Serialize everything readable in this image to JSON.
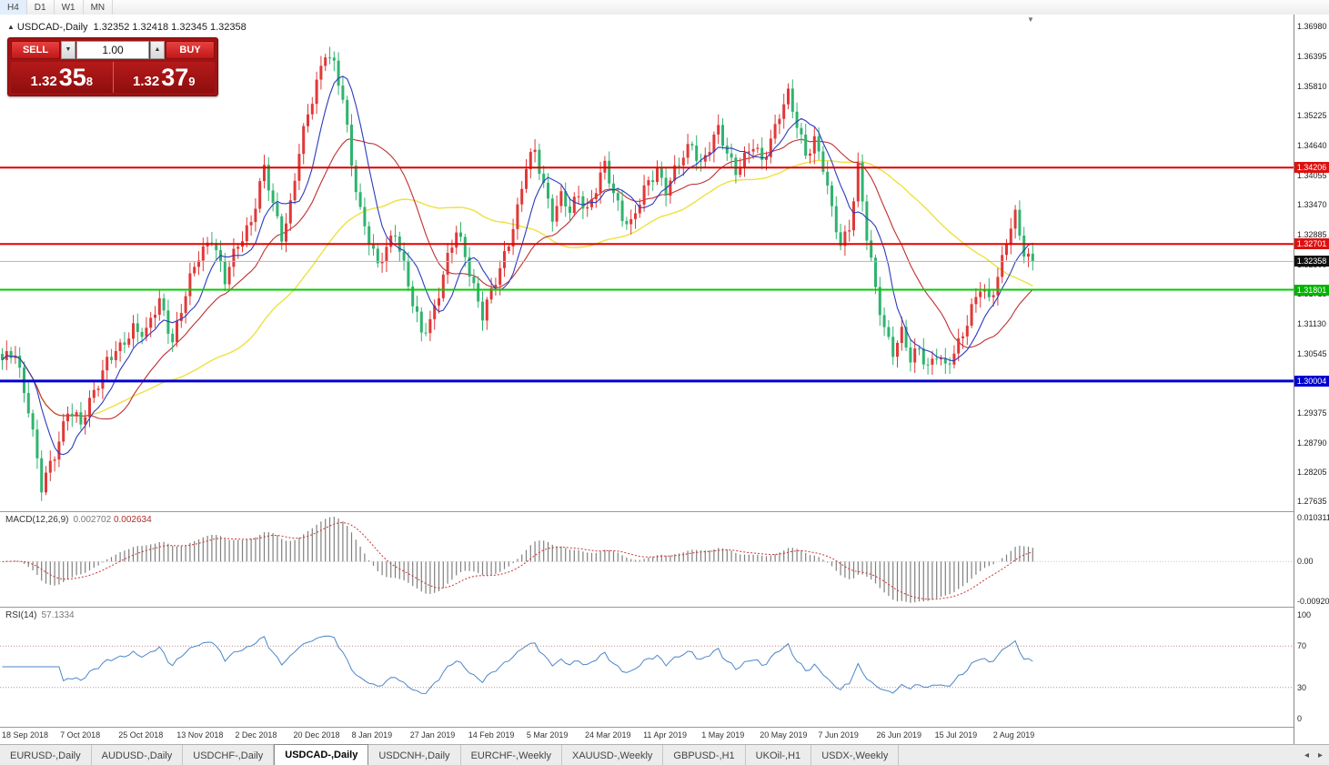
{
  "toolbar": {
    "timeframes": [
      "H4",
      "D1",
      "W1",
      "MN"
    ]
  },
  "chart_header": {
    "marker": "▲",
    "title": "USDCAD-,Daily",
    "ohlc": "1.32352 1.32418 1.32345 1.32358"
  },
  "trade_panel": {
    "sell_label": "SELL",
    "buy_label": "BUY",
    "volume": "1.00",
    "sell_price": {
      "big": "1.32",
      "mid": "35",
      "sup": "8"
    },
    "buy_price": {
      "big": "1.32",
      "mid": "37",
      "sup": "9"
    }
  },
  "price_axis": {
    "labels": [
      "1.36980",
      "1.36395",
      "1.35810",
      "1.35225",
      "1.34640",
      "1.34055",
      "1.33470",
      "1.32885",
      "1.32300",
      "1.31715",
      "1.31130",
      "1.30545",
      "1.29960",
      "1.29375",
      "1.28790",
      "1.28205",
      "1.27635"
    ],
    "tags": [
      {
        "label": "1.34206",
        "price": 1.34206,
        "bg": "#dd1111"
      },
      {
        "label": "1.32701",
        "price": 1.32701,
        "bg": "#dd1111"
      },
      {
        "label": "1.32358",
        "price": 1.32358,
        "bg": "#101010"
      },
      {
        "label": "1.31801",
        "price": 1.31801,
        "bg": "#00b400"
      },
      {
        "label": "1.30004",
        "price": 1.30004,
        "bg": "#0000d0"
      }
    ]
  },
  "current_price": {
    "value": 1.32358,
    "label": "1.32358"
  },
  "macd_panel": {
    "label": "MACD(12,26,9)",
    "value_main": "0.002702",
    "value_signal": "0.002634",
    "axis_labels": [
      "0.010311",
      "0.00",
      "-0.00920"
    ],
    "axis_values": [
      0.010311,
      0,
      -0.0092
    ]
  },
  "rsi_panel": {
    "label": "RSI(14)",
    "value": "57.1334",
    "axis_labels": [
      "100",
      "70",
      "30",
      "0"
    ],
    "axis_values": [
      100,
      70,
      30,
      0
    ],
    "levels": [
      70,
      30
    ]
  },
  "date_axis": {
    "labels": [
      "18 Sep 2018",
      "7 Oct 2018",
      "25 Oct 2018",
      "13 Nov 2018",
      "2 Dec 2018",
      "20 Dec 2018",
      "8 Jan 2019",
      "27 Jan 2019",
      "14 Feb 2019",
      "5 Mar 2019",
      "24 Mar 2019",
      "11 Apr 2019",
      "1 May 2019",
      "20 May 2019",
      "7 Jun 2019",
      "26 Jun 2019",
      "15 Jul 2019",
      "2 Aug 2019"
    ]
  },
  "tabs": {
    "items": [
      "EURUSD-,Daily",
      "AUDUSD-,Daily",
      "USDCHF-,Daily",
      "USDCAD-,Daily",
      "USDCNH-,Daily",
      "EURCHF-,Weekly",
      "XAUUSD-,Weekly",
      "GBPUSD-,H1",
      "UKOil-,H1",
      "USDX-,Weekly"
    ],
    "active_index": 3
  },
  "chart_data": {
    "type": "candlestick",
    "symbol": "USDCAD-",
    "timeframe": "Daily",
    "bars_total": 237,
    "bar_spacing": 4.8,
    "price_range": [
      1.2744,
      1.3722
    ],
    "up_color": "#e03838",
    "down_color": "#2fb36e",
    "ma": [
      {
        "period": 8,
        "color": "#2b3bbd",
        "width": 1.1
      },
      {
        "period": 21,
        "color": "#c03030",
        "width": 1.1
      },
      {
        "period": 50,
        "color": "#efe040",
        "width": 1.4
      }
    ],
    "hlines": [
      {
        "price": 1.34206,
        "color": "#e00000",
        "w": 2
      },
      {
        "price": 1.32701,
        "color": "#e00000",
        "w": 2
      },
      {
        "price": 1.31801,
        "color": "#00cc00",
        "w": 2
      },
      {
        "price": 1.30004,
        "color": "#0000d0",
        "w": 3
      }
    ],
    "macd": {
      "fast": 12,
      "slow": 26,
      "signal": 9,
      "hist_color": "#7f7f7f",
      "signal_color": "#cc3333",
      "range": [
        -0.0105,
        0.0115
      ]
    },
    "rsi": {
      "period": 14,
      "color": "#4a86c8"
    },
    "anchors": [
      [
        0,
        1.3035
      ],
      [
        3,
        1.3058
      ],
      [
        6,
        1.295
      ],
      [
        9,
        1.2785
      ],
      [
        12,
        1.286
      ],
      [
        15,
        1.2945
      ],
      [
        18,
        1.291
      ],
      [
        21,
        1.2985
      ],
      [
        24,
        1.304
      ],
      [
        27,
        1.306
      ],
      [
        30,
        1.311
      ],
      [
        33,
        1.3095
      ],
      [
        36,
        1.3155
      ],
      [
        39,
        1.3085
      ],
      [
        42,
        1.317
      ],
      [
        45,
        1.3245
      ],
      [
        48,
        1.329
      ],
      [
        51,
        1.3195
      ],
      [
        54,
        1.327
      ],
      [
        57,
        1.332
      ],
      [
        60,
        1.3415
      ],
      [
        62,
        1.3345
      ],
      [
        64,
        1.329
      ],
      [
        66,
        1.335
      ],
      [
        68,
        1.345
      ],
      [
        70,
        1.352
      ],
      [
        72,
        1.359
      ],
      [
        74,
        1.3655
      ],
      [
        76,
        1.362
      ],
      [
        78,
        1.355
      ],
      [
        80,
        1.343
      ],
      [
        82,
        1.334
      ],
      [
        84,
        1.328
      ],
      [
        86,
        1.322
      ],
      [
        88,
        1.326
      ],
      [
        90,
        1.33
      ],
      [
        92,
        1.323
      ],
      [
        94,
        1.315
      ],
      [
        96,
        1.309
      ],
      [
        98,
        1.312
      ],
      [
        100,
        1.318
      ],
      [
        102,
        1.324
      ],
      [
        104,
        1.329
      ],
      [
        106,
        1.325
      ],
      [
        108,
        1.319
      ],
      [
        110,
        1.313
      ],
      [
        112,
        1.317
      ],
      [
        114,
        1.322
      ],
      [
        116,
        1.328
      ],
      [
        118,
        1.334
      ],
      [
        120,
        1.342
      ],
      [
        122,
        1.345
      ],
      [
        124,
        1.339
      ],
      [
        126,
        1.333
      ],
      [
        128,
        1.336
      ],
      [
        130,
        1.333
      ],
      [
        132,
        1.337
      ],
      [
        134,
        1.334
      ],
      [
        136,
        1.338
      ],
      [
        138,
        1.342
      ],
      [
        140,
        1.337
      ],
      [
        142,
        1.333
      ],
      [
        144,
        1.331
      ],
      [
        146,
        1.335
      ],
      [
        148,
        1.339
      ],
      [
        150,
        1.342
      ],
      [
        152,
        1.338
      ],
      [
        154,
        1.341
      ],
      [
        156,
        1.344
      ],
      [
        158,
        1.347
      ],
      [
        160,
        1.343
      ],
      [
        162,
        1.346
      ],
      [
        164,
        1.349
      ],
      [
        166,
        1.345
      ],
      [
        168,
        1.342
      ],
      [
        170,
        1.344
      ],
      [
        172,
        1.346
      ],
      [
        174,
        1.343
      ],
      [
        176,
        1.348
      ],
      [
        178,
        1.353
      ],
      [
        180,
        1.356
      ],
      [
        182,
        1.35
      ],
      [
        184,
        1.345
      ],
      [
        186,
        1.348
      ],
      [
        188,
        1.342
      ],
      [
        190,
        1.333
      ],
      [
        192,
        1.327
      ],
      [
        194,
        1.331
      ],
      [
        196,
        1.342
      ],
      [
        198,
        1.328
      ],
      [
        200,
        1.318
      ],
      [
        202,
        1.311
      ],
      [
        204,
        1.306
      ],
      [
        206,
        1.309
      ],
      [
        208,
        1.304
      ],
      [
        210,
        1.307
      ],
      [
        212,
        1.303
      ],
      [
        214,
        1.305
      ],
      [
        216,
        1.302
      ],
      [
        218,
        1.306
      ],
      [
        220,
        1.31
      ],
      [
        222,
        1.314
      ],
      [
        224,
        1.318
      ],
      [
        226,
        1.316
      ],
      [
        228,
        1.321
      ],
      [
        230,
        1.328
      ],
      [
        232,
        1.332
      ],
      [
        234,
        1.325
      ],
      [
        236,
        1.3236
      ]
    ]
  }
}
